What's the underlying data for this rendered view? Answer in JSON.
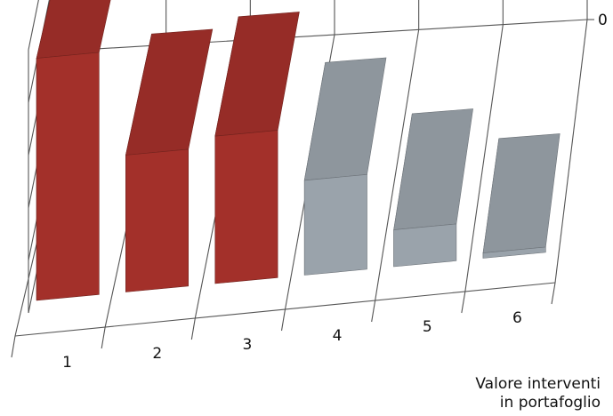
{
  "chart_data": {
    "type": "bar",
    "categories": [
      "1",
      "2",
      "3",
      "4",
      "5",
      "6"
    ],
    "values": [
      46,
      26,
      28,
      18,
      7,
      1
    ],
    "bar_colors": [
      "#a3302a",
      "#a3302a",
      "#a3302a",
      "#9aa3ab",
      "#9aa3ab",
      "#9aa3ab"
    ],
    "y_ticks": [
      "0",
      "10",
      "20",
      "30",
      "40",
      "50"
    ],
    "ylim": [
      0,
      50
    ],
    "grid": true,
    "title": "",
    "xlabel": "",
    "ylabel": ""
  },
  "caption": {
    "line1": "Valore interventi",
    "line2": "in portafoglio"
  }
}
